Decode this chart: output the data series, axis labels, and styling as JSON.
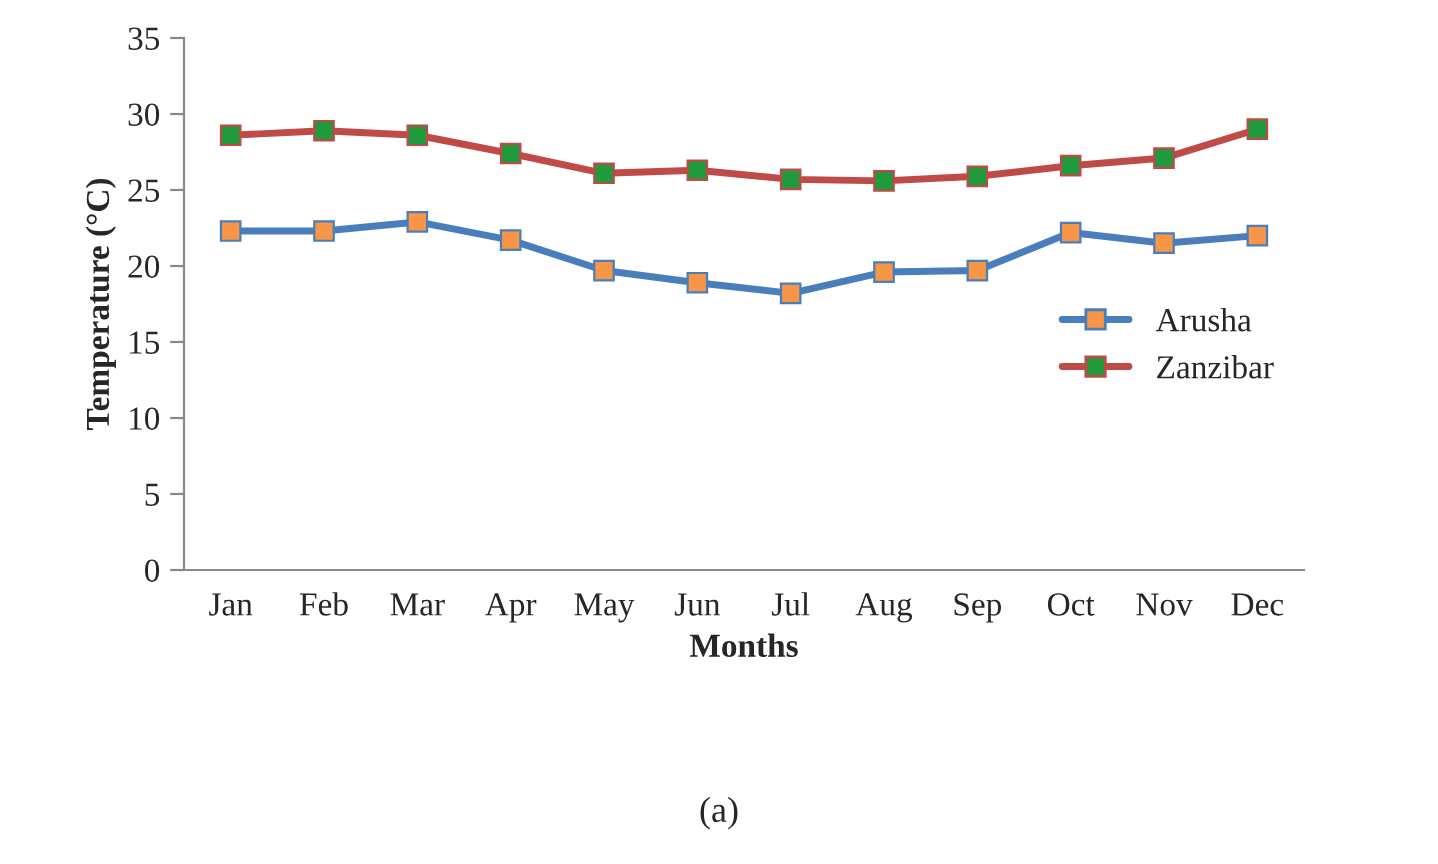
{
  "chart_data": {
    "type": "line",
    "xlabel": "Months",
    "ylabel": "Temperature (°C)",
    "categories": [
      "Jan",
      "Feb",
      "Mar",
      "Apr",
      "May",
      "Jun",
      "Jul",
      "Aug",
      "Sep",
      "Oct",
      "Nov",
      "Dec"
    ],
    "series": [
      {
        "name": "Arusha",
        "color": "#4a7ebb",
        "values": [
          22.3,
          22.3,
          22.9,
          21.7,
          19.7,
          18.9,
          18.2,
          19.6,
          19.7,
          22.2,
          21.5,
          22.0
        ]
      },
      {
        "name": "Zanzibar",
        "color": "#be4b48",
        "values": [
          28.6,
          28.9,
          28.6,
          27.4,
          26.1,
          26.3,
          25.7,
          25.6,
          25.9,
          26.6,
          27.1,
          29.0
        ]
      }
    ],
    "ylim": [
      0,
      35
    ],
    "yticks": [
      0,
      5,
      10,
      15,
      20,
      25,
      30,
      35
    ],
    "marker": "square",
    "line_style": "solid",
    "grid": false,
    "legend": "right",
    "annotations": [
      "(a)"
    ]
  }
}
